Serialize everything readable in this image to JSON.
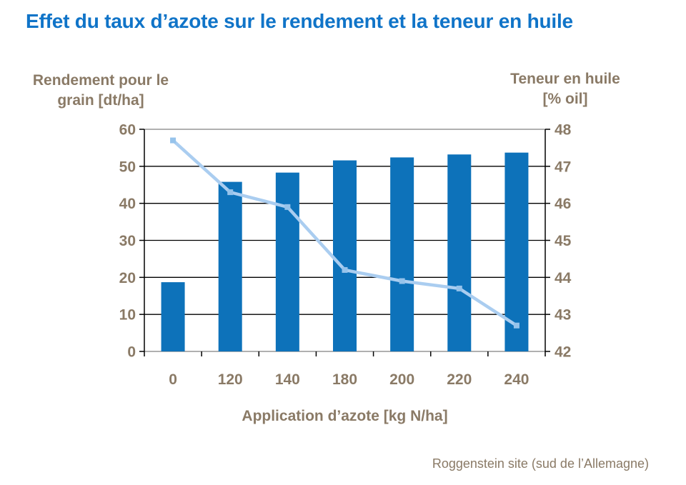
{
  "header": {
    "title": "Effet du taux d’azote sur le rendement et la teneur en huile"
  },
  "axes": {
    "left": {
      "title_line1": "Rendement pour le",
      "title_line2": "grain [dt/ha]"
    },
    "right": {
      "title_line1": "Teneur en huile",
      "title_line2": "[% oil]"
    },
    "x": {
      "title": "Application d’azote [kg N/ha]"
    }
  },
  "footnote": {
    "text": "Roggenstein site (sud de l’Allemagne)"
  },
  "colors": {
    "title_blue": "#1074c8",
    "label_brown": "#8a7a66",
    "bar_blue": "#0d72ba",
    "line_light_blue": "#aacdf0",
    "marker_blue": "#96c3eb",
    "gridline": "#000000",
    "frame_gray": "#808080",
    "axis_black": "#000000"
  },
  "chart_data": {
    "type": "bar",
    "subtype": "bar+line combo, dual axis",
    "title": "Effet du taux d’azote sur le rendement et la teneur en huile",
    "xlabel": "Application d’azote [kg N/ha]",
    "categories": [
      "0",
      "120",
      "140",
      "180",
      "200",
      "220",
      "240"
    ],
    "series": [
      {
        "name": "Rendement pour le grain [dt/ha]",
        "type": "bar",
        "axis": "left",
        "values": [
          18.7,
          45.8,
          48.3,
          51.6,
          52.4,
          53.2,
          53.7
        ],
        "color": "#0d72ba"
      },
      {
        "name": "Teneur en huile [% oil]",
        "type": "line",
        "axis": "right",
        "values": [
          47.7,
          46.3,
          45.9,
          44.2,
          43.9,
          43.7,
          42.7
        ],
        "color": "#aacdf0",
        "marker": "square",
        "marker_color": "#96c3eb"
      }
    ],
    "left_axis": {
      "label": "Rendement pour le grain [dt/ha]",
      "min": 0,
      "max": 60,
      "ticks": [
        0,
        10,
        20,
        30,
        40,
        50,
        60
      ]
    },
    "right_axis": {
      "label": "Teneur en huile [% oil]",
      "min": 42,
      "max": 48,
      "ticks": [
        42,
        43,
        44,
        45,
        46,
        47,
        48
      ]
    },
    "grid": true,
    "legend": "none"
  }
}
